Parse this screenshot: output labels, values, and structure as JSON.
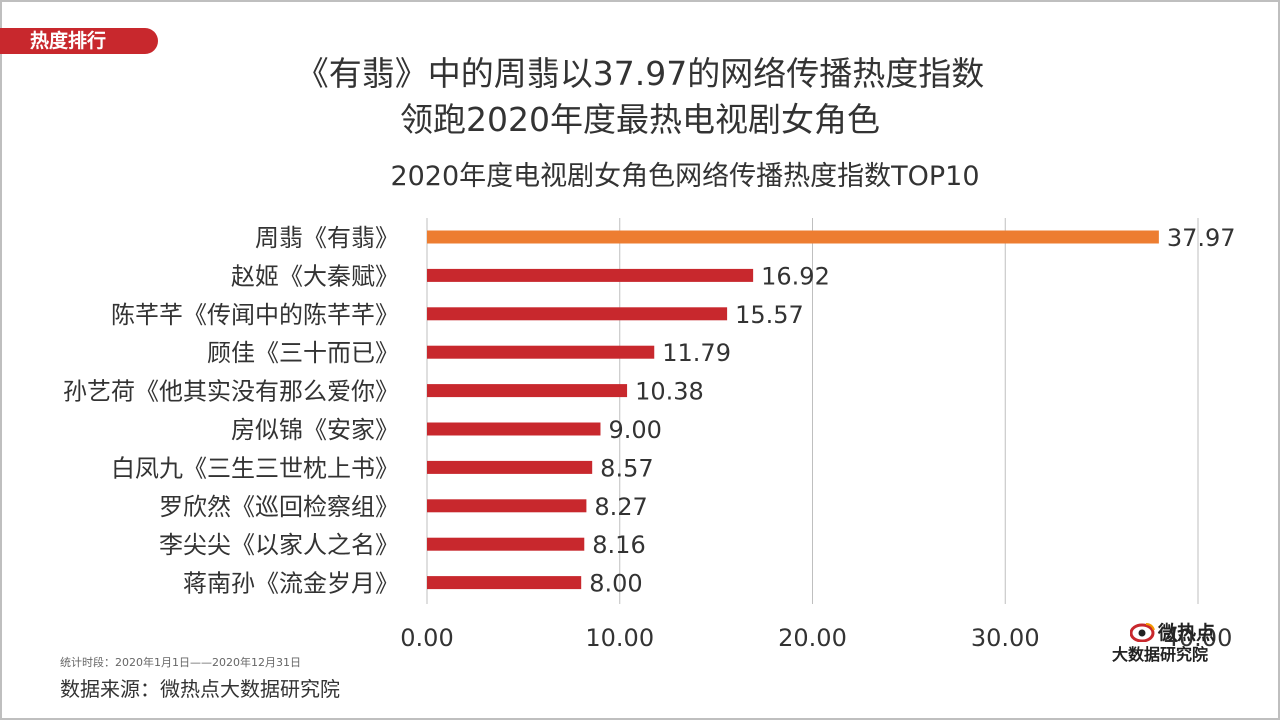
{
  "header": {
    "tag": "热度排行",
    "headline_line1": "《有翡》中的周翡以37.97的网络传播热度指数",
    "headline_line2": "领跑2020年度最热电视剧女角色"
  },
  "footer": {
    "period": "统计时段：2020年1月1日——2020年12月31日",
    "source": "数据来源：微热点大数据研究院"
  },
  "logo": {
    "name": "微热点",
    "subtitle": "大数据研究院"
  },
  "colors": {
    "highlight": "#ed7d31",
    "bar": "#c8282d",
    "axis": "#bfbfbf",
    "text": "#333333"
  },
  "chart_data": {
    "type": "bar",
    "orientation": "horizontal",
    "title": "2020年度电视剧女角色网络传播热度指数TOP10",
    "categories": [
      "周翡《有翡》",
      "赵姬《大秦赋》",
      "陈芊芊《传闻中的陈芊芊》",
      "顾佳《三十而已》",
      "孙艺荷《他其实没有那么爱你》",
      "房似锦《安家》",
      "白凤九《三生三世枕上书》",
      "罗欣然《巡回检察组》",
      "李尖尖《以家人之名》",
      "蒋南孙《流金岁月》"
    ],
    "values": [
      37.97,
      16.92,
      15.57,
      11.79,
      10.38,
      9.0,
      8.57,
      8.27,
      8.16,
      8.0
    ],
    "value_labels": [
      "37.97",
      "16.92",
      "15.57",
      "11.79",
      "10.38",
      "9.00",
      "8.57",
      "8.27",
      "8.16",
      "8.00"
    ],
    "highlight_index": 0,
    "xlim": [
      0,
      40
    ],
    "xticks": [
      0,
      10,
      20,
      30,
      40
    ],
    "xtick_labels": [
      "0.00",
      "10.00",
      "20.00",
      "30.00",
      "40.00"
    ],
    "grid": "vertical",
    "legend": "none"
  }
}
